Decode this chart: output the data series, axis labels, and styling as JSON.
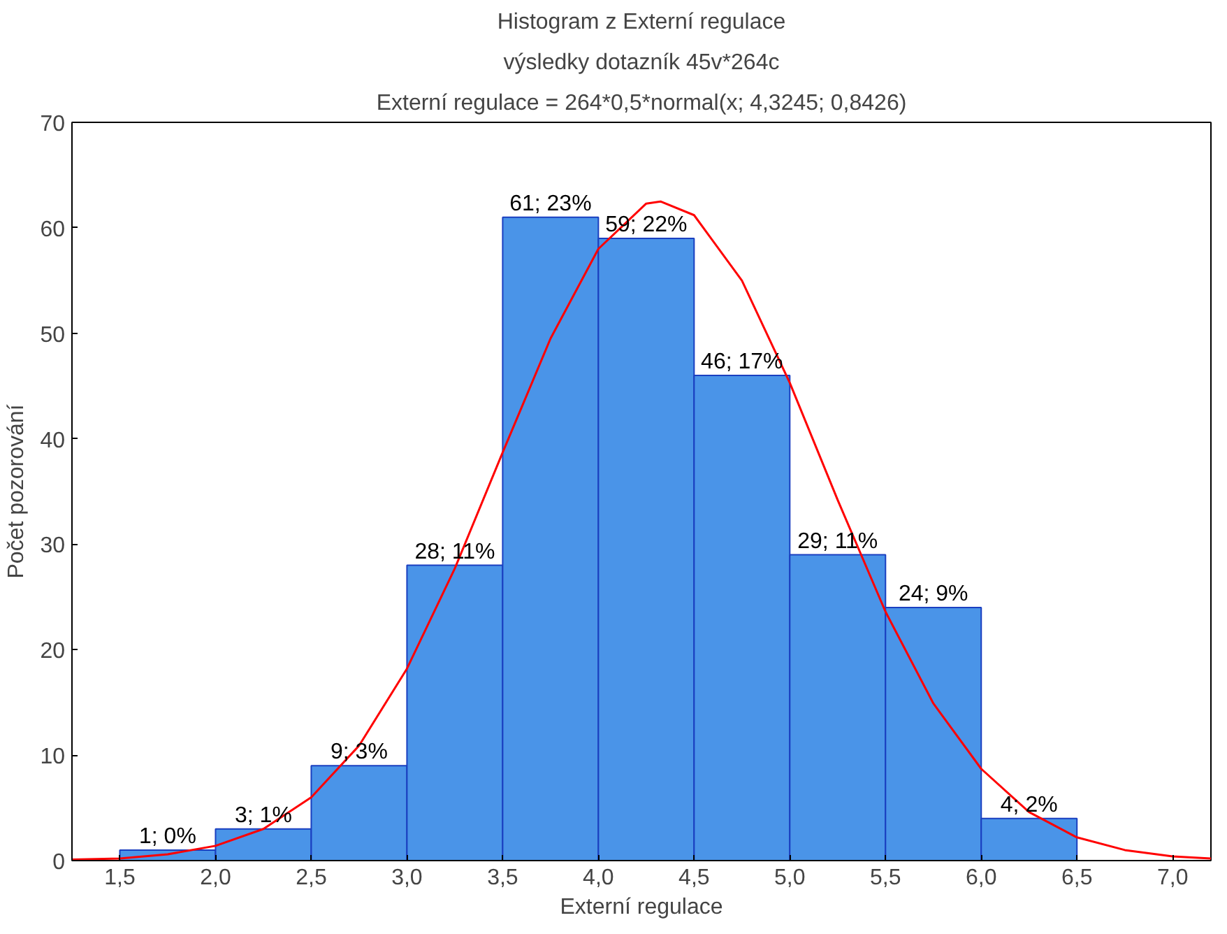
{
  "chart_data": {
    "type": "histogram",
    "title": "Histogram z Externí regulace",
    "subtitle": "výsledky dotazník 45v*264c",
    "annotations": [
      "Externí regulace = 264*0,5*normal(x; 4,3245; 0,8426)"
    ],
    "xlabel": "Externí regulace",
    "ylabel": "Počet pozorování",
    "xlim": [
      1.25,
      7.2
    ],
    "ylim": [
      0,
      70
    ],
    "xticks": [
      {
        "value": 1.5,
        "label": "1,5"
      },
      {
        "value": 2.0,
        "label": "2,0"
      },
      {
        "value": 2.5,
        "label": "2,5"
      },
      {
        "value": 3.0,
        "label": "3,0"
      },
      {
        "value": 3.5,
        "label": "3,5"
      },
      {
        "value": 4.0,
        "label": "4,0"
      },
      {
        "value": 4.5,
        "label": "4,5"
      },
      {
        "value": 5.0,
        "label": "5,0"
      },
      {
        "value": 5.5,
        "label": "5,5"
      },
      {
        "value": 6.0,
        "label": "6,0"
      },
      {
        "value": 6.5,
        "label": "6,5"
      },
      {
        "value": 7.0,
        "label": "7,0"
      }
    ],
    "yticks": [
      0,
      10,
      20,
      30,
      40,
      50,
      60,
      70
    ],
    "grid": false,
    "series": [
      {
        "color": "#4a94e8",
        "bins": [
          1.5,
          2.0,
          2.5,
          3.0,
          3.5,
          4.0,
          4.5,
          5.0,
          5.5,
          6.0,
          6.5
        ],
        "values": [
          1,
          3,
          9,
          28,
          61,
          59,
          46,
          29,
          24,
          4
        ],
        "value_labels": [
          "1; 0%",
          "3; 1%",
          "9; 3%",
          "28; 11%",
          "61; 23%",
          "59; 22%",
          "46; 17%",
          "29; 11%",
          "24; 9%",
          "4; 2%"
        ]
      },
      {
        "type": "line",
        "color": "#ff0000",
        "x": [
          1.25,
          1.5,
          1.75,
          2.0,
          2.25,
          2.5,
          2.75,
          3.0,
          3.25,
          3.5,
          3.75,
          4.0,
          4.25,
          4.3245,
          4.5,
          4.75,
          5.0,
          5.25,
          5.5,
          5.75,
          6.0,
          6.25,
          6.5,
          6.75,
          7.0,
          7.2
        ],
        "values": [
          0.1,
          0.2,
          0.6,
          1.4,
          3.0,
          6.0,
          10.9,
          18.2,
          27.7,
          38.7,
          49.5,
          58.0,
          62.3,
          62.5,
          61.2,
          55.0,
          45.3,
          34.2,
          23.6,
          14.9,
          8.7,
          4.6,
          2.2,
          1.0,
          0.4,
          0.2
        ]
      }
    ]
  }
}
